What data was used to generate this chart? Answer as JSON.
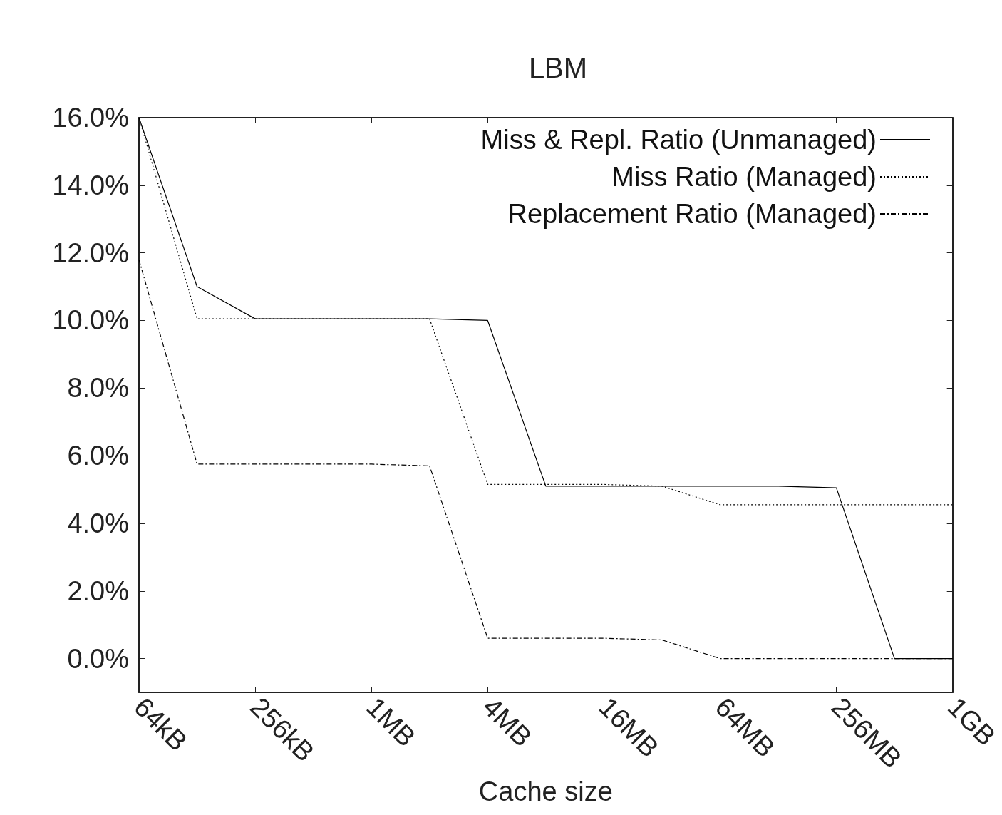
{
  "chart_data": {
    "type": "line",
    "title": "LBM",
    "xlabel": "Cache size",
    "categories": [
      "64kB",
      null,
      "256kB",
      null,
      "1MB",
      null,
      "4MB",
      null,
      "16MB",
      null,
      "64MB",
      null,
      "256MB",
      null,
      "1GB"
    ],
    "ylim": [
      -1,
      16
    ],
    "yticks": [
      {
        "value": 0,
        "label": "0.0%"
      },
      {
        "value": 2,
        "label": "2.0%"
      },
      {
        "value": 4,
        "label": "4.0%"
      },
      {
        "value": 6,
        "label": "6.0%"
      },
      {
        "value": 8,
        "label": "8.0%"
      },
      {
        "value": 10,
        "label": "10.0%"
      },
      {
        "value": 12,
        "label": "12.0%"
      },
      {
        "value": 14,
        "label": "14.0%"
      },
      {
        "value": 16,
        "label": "16.0%"
      }
    ],
    "grid": false,
    "legend": "top right",
    "marker": "none",
    "series": [
      {
        "name": "Miss & Repl. Ratio (Unmanaged)",
        "color": "#000000",
        "line_style": "solid",
        "values": [
          16.0,
          11.0,
          10.05,
          10.05,
          10.05,
          10.05,
          10.0,
          5.1,
          5.1,
          5.1,
          5.1,
          5.1,
          5.05,
          0.0,
          0.0
        ]
      },
      {
        "name": "Miss Ratio (Managed)",
        "color": "#000000",
        "line_style": "dotted",
        "values": [
          16.0,
          10.05,
          10.05,
          10.05,
          10.05,
          10.05,
          5.15,
          5.15,
          5.15,
          5.1,
          4.55,
          4.55,
          4.55,
          4.55,
          4.55
        ]
      },
      {
        "name": "Replacement Ratio (Managed)",
        "color": "#000000",
        "line_style": "dashed",
        "values": [
          11.8,
          5.75,
          5.75,
          5.75,
          5.75,
          5.7,
          0.6,
          0.6,
          0.6,
          0.55,
          0.0,
          0.0,
          0.0,
          0.0,
          0.0
        ]
      }
    ]
  }
}
